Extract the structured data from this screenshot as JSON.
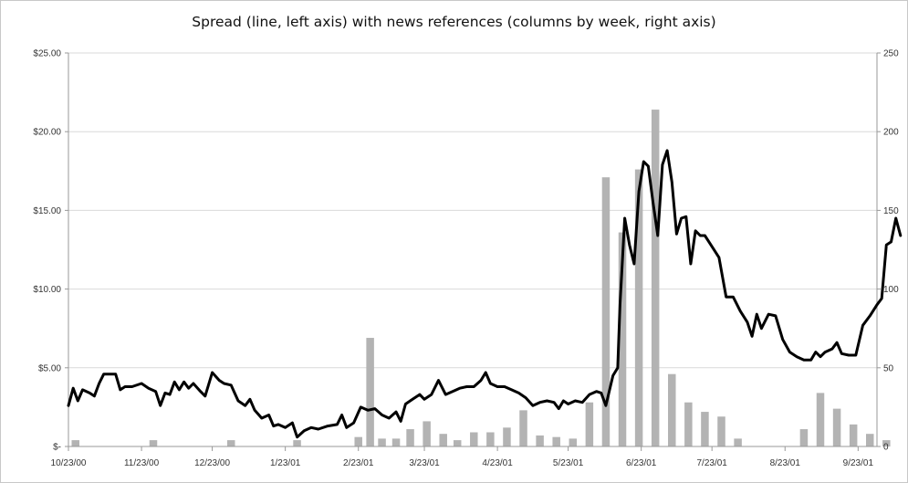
{
  "chart_data": {
    "type": "line",
    "title": "Spread (line, left axis) with news references (columns by week, right axis)",
    "xlabel": "",
    "ylabel_left": "",
    "ylabel_right": "",
    "x_range": [
      "2000-10-23",
      "2001-10-01"
    ],
    "x_tick_labels": [
      "10/23/00",
      "11/23/00",
      "12/23/00",
      "1/23/01",
      "2/23/01",
      "3/23/01",
      "4/23/01",
      "5/23/01",
      "6/23/01",
      "7/23/01",
      "8/23/01",
      "9/23/01"
    ],
    "x_tick_dates": [
      "2000-10-23",
      "2000-11-23",
      "2000-12-23",
      "2001-01-23",
      "2001-02-23",
      "2001-03-23",
      "2001-04-23",
      "2001-05-23",
      "2001-06-23",
      "2001-07-23",
      "2001-08-23",
      "2001-09-23"
    ],
    "left_axis": {
      "min": 0,
      "max": 25,
      "tick_labels": [
        "$-",
        "$5.00",
        "$10.00",
        "$15.00",
        "$20.00",
        "$25.00"
      ],
      "tick_values": [
        0,
        5,
        10,
        15,
        20,
        25
      ]
    },
    "right_axis": {
      "min": 0,
      "max": 250,
      "tick_labels": [
        "0",
        "50",
        "100",
        "150",
        "200",
        "250"
      ],
      "tick_values": [
        0,
        50,
        100,
        150,
        200,
        250
      ]
    },
    "grid": "horizontal",
    "legend": "none",
    "colors": {
      "line": "#000000",
      "columns": "#b3b3b3",
      "grid": "#d9d9d9",
      "axis": "#999999"
    },
    "line_series": {
      "axis": "left",
      "points": [
        [
          "2000-10-23",
          2.6
        ],
        [
          "2000-10-25",
          3.7
        ],
        [
          "2000-10-27",
          2.9
        ],
        [
          "2000-10-29",
          3.6
        ],
        [
          "2000-11-01",
          3.4
        ],
        [
          "2000-11-03",
          3.2
        ],
        [
          "2000-11-05",
          4.0
        ],
        [
          "2000-11-07",
          4.6
        ],
        [
          "2000-11-10",
          4.6
        ],
        [
          "2000-11-12",
          4.6
        ],
        [
          "2000-11-14",
          3.6
        ],
        [
          "2000-11-16",
          3.8
        ],
        [
          "2000-11-19",
          3.8
        ],
        [
          "2000-11-23",
          4.0
        ],
        [
          "2000-11-26",
          3.7
        ],
        [
          "2000-11-29",
          3.5
        ],
        [
          "2000-12-01",
          2.6
        ],
        [
          "2000-12-03",
          3.4
        ],
        [
          "2000-12-05",
          3.3
        ],
        [
          "2000-12-07",
          4.1
        ],
        [
          "2000-12-09",
          3.6
        ],
        [
          "2000-12-11",
          4.1
        ],
        [
          "2000-12-13",
          3.7
        ],
        [
          "2000-12-15",
          4.0
        ],
        [
          "2000-12-18",
          3.5
        ],
        [
          "2000-12-20",
          3.2
        ],
        [
          "2000-12-23",
          4.7
        ],
        [
          "2000-12-26",
          4.2
        ],
        [
          "2000-12-28",
          4.0
        ],
        [
          "2000-12-31",
          3.9
        ],
        [
          "2001-01-03",
          2.9
        ],
        [
          "2001-01-06",
          2.6
        ],
        [
          "2001-01-08",
          3.0
        ],
        [
          "2001-01-10",
          2.3
        ],
        [
          "2001-01-13",
          1.8
        ],
        [
          "2001-01-16",
          2.0
        ],
        [
          "2001-01-18",
          1.3
        ],
        [
          "2001-01-20",
          1.4
        ],
        [
          "2001-01-23",
          1.2
        ],
        [
          "2001-01-26",
          1.5
        ],
        [
          "2001-01-28",
          0.6
        ],
        [
          "2001-01-31",
          1.0
        ],
        [
          "2001-02-03",
          1.2
        ],
        [
          "2001-02-06",
          1.1
        ],
        [
          "2001-02-10",
          1.3
        ],
        [
          "2001-02-14",
          1.4
        ],
        [
          "2001-02-16",
          2.0
        ],
        [
          "2001-02-18",
          1.2
        ],
        [
          "2001-02-21",
          1.5
        ],
        [
          "2001-02-24",
          2.5
        ],
        [
          "2001-02-27",
          2.3
        ],
        [
          "2001-03-02",
          2.4
        ],
        [
          "2001-03-05",
          2.0
        ],
        [
          "2001-03-08",
          1.8
        ],
        [
          "2001-03-11",
          2.2
        ],
        [
          "2001-03-13",
          1.6
        ],
        [
          "2001-03-15",
          2.7
        ],
        [
          "2001-03-18",
          3.0
        ],
        [
          "2001-03-21",
          3.3
        ],
        [
          "2001-03-23",
          3.0
        ],
        [
          "2001-03-26",
          3.3
        ],
        [
          "2001-03-29",
          4.2
        ],
        [
          "2001-04-01",
          3.3
        ],
        [
          "2001-04-04",
          3.5
        ],
        [
          "2001-04-07",
          3.7
        ],
        [
          "2001-04-10",
          3.8
        ],
        [
          "2001-04-13",
          3.8
        ],
        [
          "2001-04-16",
          4.2
        ],
        [
          "2001-04-18",
          4.7
        ],
        [
          "2001-04-20",
          4.0
        ],
        [
          "2001-04-23",
          3.8
        ],
        [
          "2001-04-26",
          3.8
        ],
        [
          "2001-04-29",
          3.6
        ],
        [
          "2001-05-02",
          3.4
        ],
        [
          "2001-05-05",
          3.1
        ],
        [
          "2001-05-08",
          2.6
        ],
        [
          "2001-05-11",
          2.8
        ],
        [
          "2001-05-14",
          2.9
        ],
        [
          "2001-05-17",
          2.8
        ],
        [
          "2001-05-19",
          2.4
        ],
        [
          "2001-05-21",
          2.9
        ],
        [
          "2001-05-23",
          2.7
        ],
        [
          "2001-05-26",
          2.9
        ],
        [
          "2001-05-29",
          2.8
        ],
        [
          "2001-06-01",
          3.3
        ],
        [
          "2001-06-04",
          3.5
        ],
        [
          "2001-06-06",
          3.4
        ],
        [
          "2001-06-08",
          2.6
        ],
        [
          "2001-06-11",
          4.5
        ],
        [
          "2001-06-13",
          5.0
        ],
        [
          "2001-06-14",
          9.0
        ],
        [
          "2001-06-16",
          14.5
        ],
        [
          "2001-06-18",
          12.8
        ],
        [
          "2001-06-20",
          11.6
        ],
        [
          "2001-06-22",
          16.2
        ],
        [
          "2001-06-24",
          18.1
        ],
        [
          "2001-06-26",
          17.8
        ],
        [
          "2001-06-28",
          15.5
        ],
        [
          "2001-06-30",
          13.4
        ],
        [
          "2001-07-02",
          17.9
        ],
        [
          "2001-07-04",
          18.8
        ],
        [
          "2001-07-06",
          16.8
        ],
        [
          "2001-07-08",
          13.5
        ],
        [
          "2001-07-10",
          14.5
        ],
        [
          "2001-07-12",
          14.6
        ],
        [
          "2001-07-14",
          11.6
        ],
        [
          "2001-07-16",
          13.7
        ],
        [
          "2001-07-18",
          13.4
        ],
        [
          "2001-07-20",
          13.4
        ],
        [
          "2001-07-23",
          12.7
        ],
        [
          "2001-07-26",
          12.0
        ],
        [
          "2001-07-29",
          9.5
        ],
        [
          "2001-08-01",
          9.5
        ],
        [
          "2001-08-04",
          8.6
        ],
        [
          "2001-08-07",
          7.9
        ],
        [
          "2001-08-09",
          7.0
        ],
        [
          "2001-08-11",
          8.4
        ],
        [
          "2001-08-13",
          7.5
        ],
        [
          "2001-08-16",
          8.4
        ],
        [
          "2001-08-19",
          8.3
        ],
        [
          "2001-08-22",
          6.8
        ],
        [
          "2001-08-25",
          6.0
        ],
        [
          "2001-08-28",
          5.7
        ],
        [
          "2001-08-31",
          5.5
        ],
        [
          "2001-09-03",
          5.5
        ],
        [
          "2001-09-05",
          6.0
        ],
        [
          "2001-09-07",
          5.7
        ],
        [
          "2001-09-09",
          6.0
        ],
        [
          "2001-09-12",
          6.2
        ],
        [
          "2001-09-14",
          6.6
        ],
        [
          "2001-09-16",
          5.9
        ],
        [
          "2001-09-19",
          5.8
        ],
        [
          "2001-09-22",
          5.8
        ],
        [
          "2001-09-25",
          7.7
        ],
        [
          "2001-09-28",
          8.3
        ],
        [
          "2001-10-01",
          9.0
        ],
        [
          "2001-10-03",
          9.4
        ],
        [
          "2001-10-05",
          12.8
        ],
        [
          "2001-10-07",
          13.0
        ],
        [
          "2001-10-09",
          14.5
        ],
        [
          "2001-10-11",
          13.4
        ]
      ]
    },
    "column_series": {
      "axis": "right",
      "points": [
        [
          "2000-10-26",
          4
        ],
        [
          "2000-11-28",
          4
        ],
        [
          "2000-12-31",
          4
        ],
        [
          "2001-01-28",
          4
        ],
        [
          "2001-02-23",
          6
        ],
        [
          "2001-02-28",
          69
        ],
        [
          "2001-03-05",
          5
        ],
        [
          "2001-03-11",
          5
        ],
        [
          "2001-03-17",
          11
        ],
        [
          "2001-03-24",
          16
        ],
        [
          "2001-03-31",
          8
        ],
        [
          "2001-04-06",
          4
        ],
        [
          "2001-04-13",
          9
        ],
        [
          "2001-04-20",
          9
        ],
        [
          "2001-04-27",
          12
        ],
        [
          "2001-05-04",
          23
        ],
        [
          "2001-05-11",
          7
        ],
        [
          "2001-05-18",
          6
        ],
        [
          "2001-05-25",
          5
        ],
        [
          "2001-06-01",
          28
        ],
        [
          "2001-06-08",
          171
        ],
        [
          "2001-06-15",
          136
        ],
        [
          "2001-06-22",
          176
        ],
        [
          "2001-06-29",
          214
        ],
        [
          "2001-07-06",
          46
        ],
        [
          "2001-07-13",
          28
        ],
        [
          "2001-07-20",
          22
        ],
        [
          "2001-07-27",
          19
        ],
        [
          "2001-08-03",
          5
        ],
        [
          "2001-08-31",
          11
        ],
        [
          "2001-09-07",
          34
        ],
        [
          "2001-09-14",
          24
        ],
        [
          "2001-09-21",
          14
        ],
        [
          "2001-09-28",
          8
        ],
        [
          "2001-10-05",
          4
        ]
      ]
    }
  }
}
